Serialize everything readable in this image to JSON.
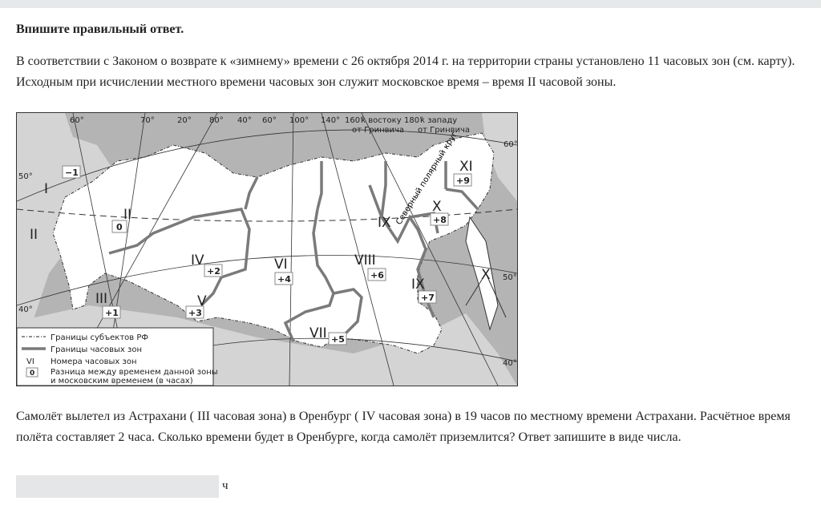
{
  "heading": "Впишите правильный ответ.",
  "intro": "В соответствии с Законом о возврате к «зимнему» времени с 26 октября 2014 г. на территории страны установлено 11 часовых зон (см. карту). Исходным при исчислении местного времени часовых зон служит московское время –  время II часовой зоны.",
  "map": {
    "degree_labels": [
      "60°",
      "70°",
      "20°",
      "80°",
      "40°",
      "60°",
      "100°",
      "140°",
      "160°",
      "180°",
      "60°",
      "50°",
      "40°",
      "50°",
      "40°"
    ],
    "east_note": [
      "к востоку",
      "от Гринвича"
    ],
    "west_note": [
      "к западу",
      "от Гринвича"
    ],
    "arctic_circle": "Северный полярный круг",
    "zones": [
      {
        "num": "I",
        "diff": "−1"
      },
      {
        "num": "II",
        "diff": "0"
      },
      {
        "num": "II"
      },
      {
        "num": "III",
        "diff": "+1"
      },
      {
        "num": "IV",
        "diff": "+2"
      },
      {
        "num": "V",
        "diff": "+3"
      },
      {
        "num": "VI",
        "diff": "+4"
      },
      {
        "num": "VII",
        "diff": "+5"
      },
      {
        "num": "VIII",
        "diff": "+6"
      },
      {
        "num": "IX",
        "diff": "+7"
      },
      {
        "num": "IX"
      },
      {
        "num": "X",
        "diff": "+8"
      },
      {
        "num": "XI",
        "diff": "+9"
      },
      {
        "num": "X"
      }
    ],
    "legend": {
      "subjects": "Границы субъектов РФ",
      "zones": "Границы часовых зон",
      "numbers_sample": "VI",
      "numbers": "Номера часовых зон",
      "diff_sample": "0",
      "diff_line1": "Разница между временем данной зоны",
      "diff_line2": "и московским временем (в часах)"
    },
    "colors": {
      "sea": "#b4b4b4",
      "land": "#ffffff",
      "foreign": "#d4d4d4",
      "zone_border": "#7a7a7a"
    }
  },
  "question": "Самолёт вылетел из Астрахани ( III часовая зона) в Оренбург ( IV часовая зона) в 19 часов по местному времени Астрахани. Расчётное время полёта составляет 2 часа. Сколько времени будет в Оренбурге, когда самолёт приземлится? Ответ запишите в виде числа.",
  "answer": {
    "value": "",
    "unit": "ч"
  }
}
